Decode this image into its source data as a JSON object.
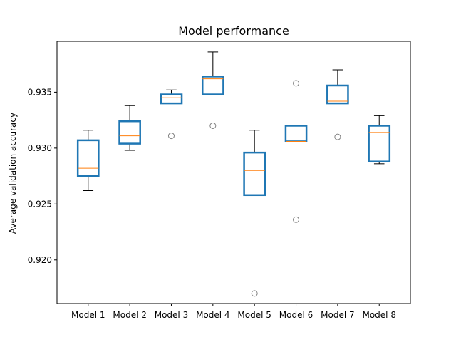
{
  "chart_data": {
    "type": "boxplot",
    "title": "Model performance",
    "xlabel": "",
    "ylabel": "Average validation accuracy",
    "ylim": [
      0.9161,
      0.93955
    ],
    "yticks": [
      0.92,
      0.925,
      0.93,
      0.935
    ],
    "ytick_labels": [
      "0.920",
      "0.925",
      "0.930",
      "0.935"
    ],
    "grid": false,
    "colors": {
      "box": "#1f77b4",
      "median": "#ff7f0e",
      "whisker": "#000000",
      "outlier": "#808080"
    },
    "categories": [
      "Model 1",
      "Model 2",
      "Model 3",
      "Model 4",
      "Model 5",
      "Model 6",
      "Model 7",
      "Model 8"
    ],
    "boxes": [
      {
        "whisker_low": 0.9262,
        "q1": 0.9275,
        "median": 0.9282,
        "q3": 0.9307,
        "whisker_high": 0.9316,
        "outliers": []
      },
      {
        "whisker_low": 0.9298,
        "q1": 0.9304,
        "median": 0.9311,
        "q3": 0.9324,
        "whisker_high": 0.9338,
        "outliers": []
      },
      {
        "whisker_low": 0.934,
        "q1": 0.934,
        "median": 0.9345,
        "q3": 0.9348,
        "whisker_high": 0.9352,
        "outliers": [
          0.9311
        ]
      },
      {
        "whisker_low": 0.9348,
        "q1": 0.9348,
        "median": 0.9362,
        "q3": 0.9364,
        "whisker_high": 0.9386,
        "outliers": [
          0.932
        ]
      },
      {
        "whisker_low": 0.9258,
        "q1": 0.9258,
        "median": 0.928,
        "q3": 0.9296,
        "whisker_high": 0.9316,
        "outliers": [
          0.917
        ]
      },
      {
        "whisker_low": 0.9306,
        "q1": 0.9306,
        "median": 0.9306,
        "q3": 0.932,
        "whisker_high": 0.932,
        "outliers": [
          0.9358,
          0.9236
        ]
      },
      {
        "whisker_low": 0.934,
        "q1": 0.934,
        "median": 0.9342,
        "q3": 0.9356,
        "whisker_high": 0.937,
        "outliers": [
          0.931
        ]
      },
      {
        "whisker_low": 0.9286,
        "q1": 0.9288,
        "median": 0.9314,
        "q3": 0.932,
        "whisker_high": 0.9329,
        "outliers": []
      }
    ]
  }
}
